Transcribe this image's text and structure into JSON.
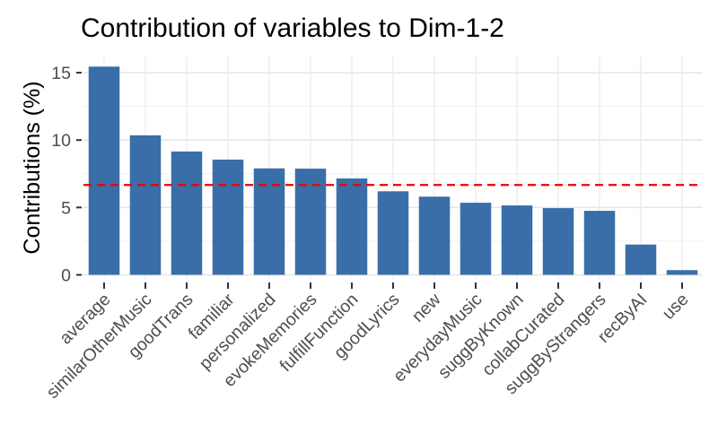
{
  "chart_data": {
    "type": "bar",
    "title": "Contribution of variables to Dim-1-2",
    "xlabel": "",
    "ylabel": "Contributions (%)",
    "categories": [
      "average",
      "similarOtherMusic",
      "goodTrans",
      "familiar",
      "personalized",
      "evokeMemories",
      "fulfillFunction",
      "goodLyrics",
      "new",
      "everydayMusic",
      "suggByKnown",
      "collabCurated",
      "suggByStrangers",
      "recByAI",
      "use"
    ],
    "values": [
      15.45,
      10.35,
      9.15,
      8.55,
      7.9,
      7.88,
      7.15,
      6.2,
      5.8,
      5.35,
      5.15,
      4.95,
      4.75,
      2.25,
      0.35
    ],
    "ylim": [
      -0.3,
      16.2
    ],
    "yticks": [
      0,
      5,
      10,
      15
    ],
    "reference_line": {
      "value": 6.67,
      "style": "dashed",
      "color": "#ee0000"
    },
    "bar_color": "#3a6ea8",
    "grid": true,
    "legend": "none"
  }
}
